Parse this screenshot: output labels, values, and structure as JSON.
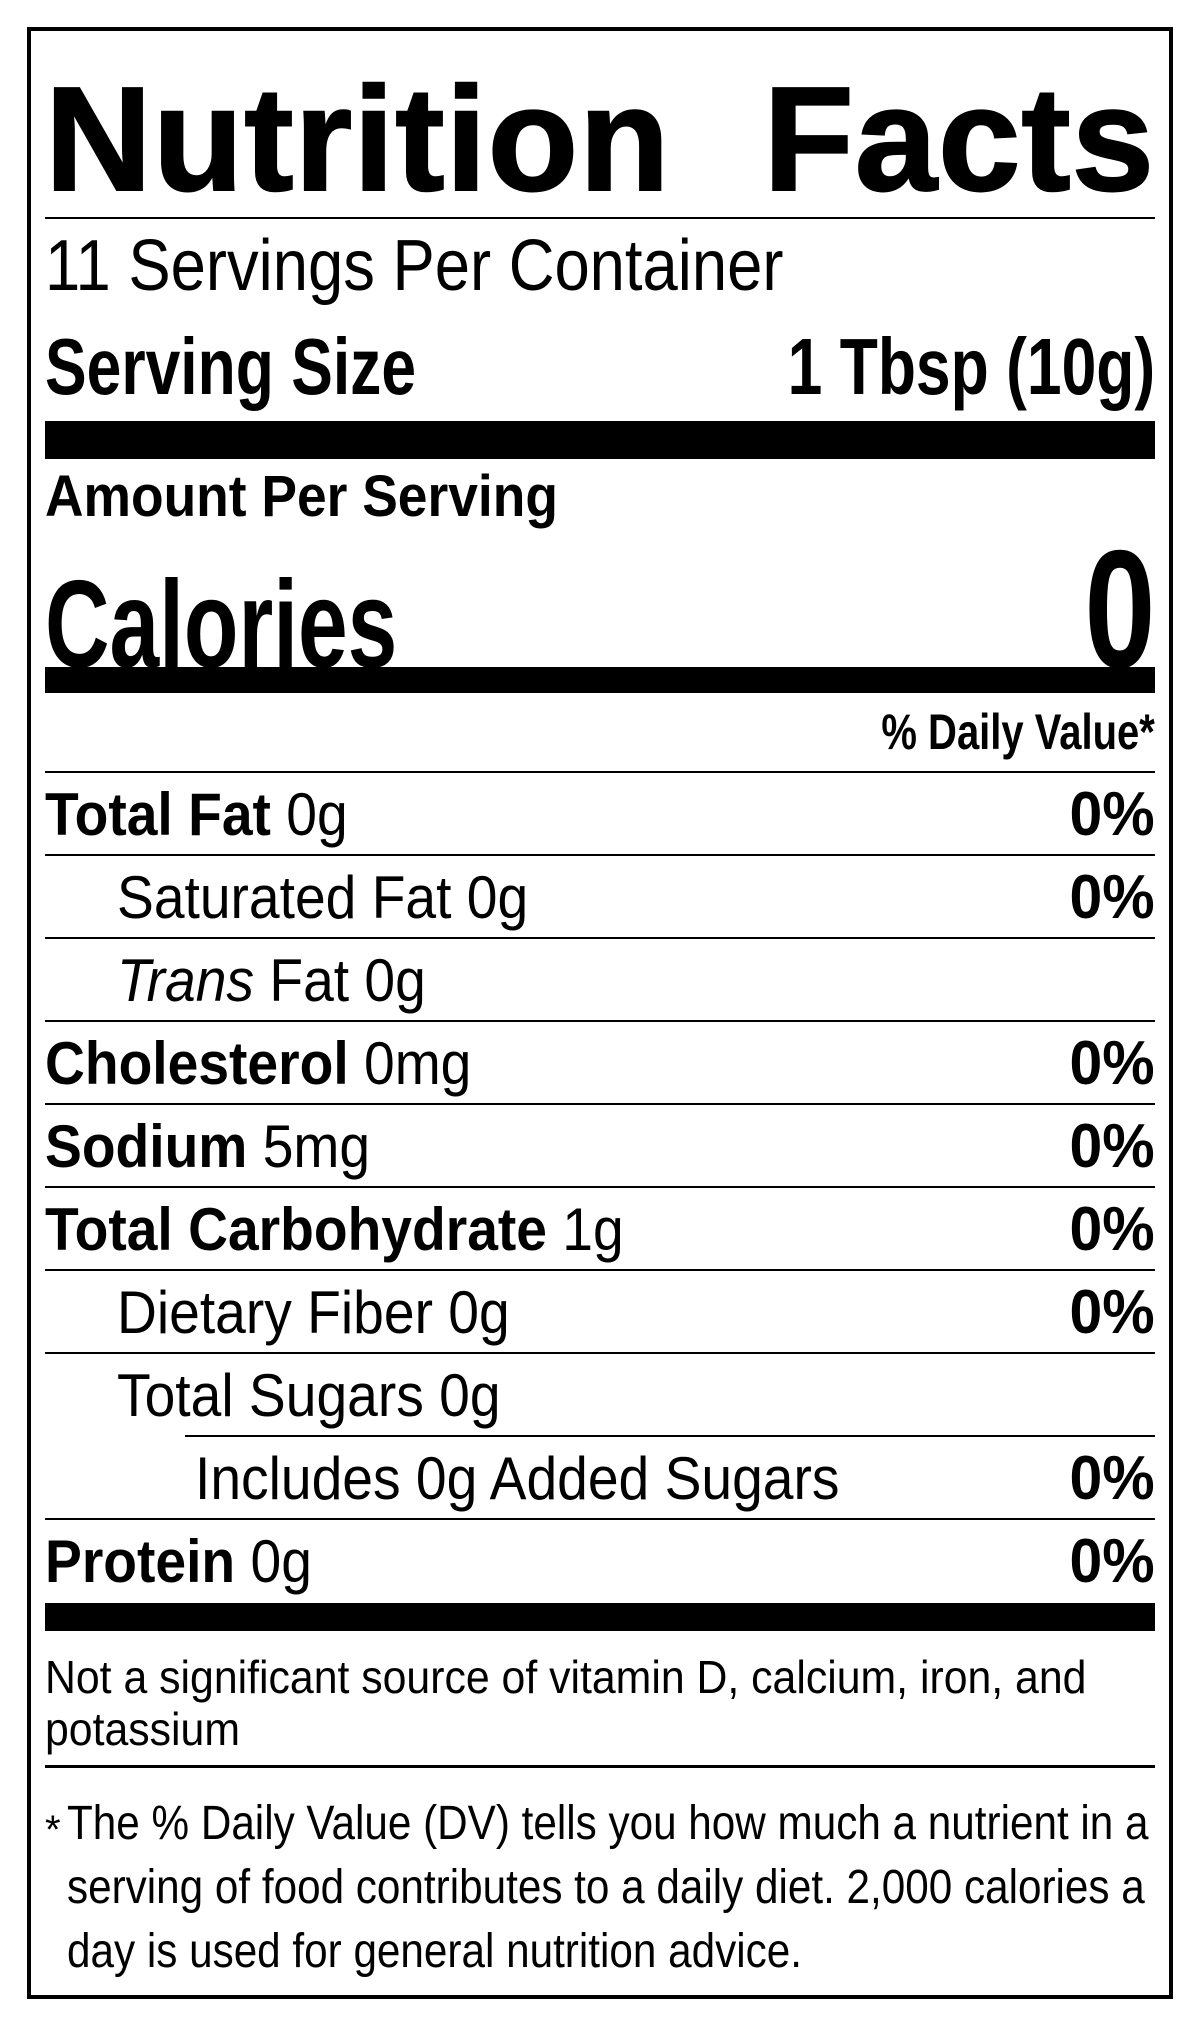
{
  "colors": {
    "ink": "#000000",
    "paper": "#ffffff"
  },
  "label": {
    "title_word1": "Nutrition",
    "title_word2": "Facts",
    "servings_per_container": "11 Servings Per Container",
    "serving_size_label": "Serving Size",
    "serving_size_value": "1 Tbsp (10g)",
    "amount_per_serving": "Amount Per Serving",
    "calories_label": "Calories",
    "calories_value": "0",
    "daily_value_header": "% Daily Value*",
    "nutrient_rows": [
      {
        "parts": [
          {
            "text": "Total Fat",
            "bold": true
          },
          {
            "text": " 0g"
          }
        ],
        "dv": "0%",
        "indent": 0,
        "rule_below": "full"
      },
      {
        "parts": [
          {
            "text": "Saturated Fat 0g"
          }
        ],
        "dv": "0%",
        "indent": 1,
        "rule_below": "full"
      },
      {
        "parts": [
          {
            "text": "Trans",
            "italic": true
          },
          {
            "text": " Fat 0g"
          }
        ],
        "dv": "",
        "indent": 1,
        "rule_below": "full"
      },
      {
        "parts": [
          {
            "text": "Cholesterol",
            "bold": true
          },
          {
            "text": " 0mg"
          }
        ],
        "dv": "0%",
        "indent": 0,
        "rule_below": "full"
      },
      {
        "parts": [
          {
            "text": "Sodium",
            "bold": true
          },
          {
            "text": " 5mg"
          }
        ],
        "dv": "0%",
        "indent": 0,
        "rule_below": "full"
      },
      {
        "parts": [
          {
            "text": "Total Carbohydrate",
            "bold": true
          },
          {
            "text": " 1g"
          }
        ],
        "dv": "0%",
        "indent": 0,
        "rule_below": "full"
      },
      {
        "parts": [
          {
            "text": "Dietary Fiber 0g"
          }
        ],
        "dv": "0%",
        "indent": 1,
        "rule_below": "full"
      },
      {
        "parts": [
          {
            "text": "Total Sugars 0g"
          }
        ],
        "dv": "",
        "indent": 1,
        "rule_below": "indent"
      },
      {
        "parts": [
          {
            "text": "Includes 0g Added Sugars"
          }
        ],
        "dv": "0%",
        "indent": 2,
        "rule_below": "full"
      },
      {
        "parts": [
          {
            "text": "Protein",
            "bold": true
          },
          {
            "text": " 0g"
          }
        ],
        "dv": "0%",
        "indent": 0,
        "rule_below": "none"
      }
    ],
    "not_significant_lines": [
      "Not a significant source of vitamin D, calcium, iron, and",
      "potassium"
    ],
    "footnote_marker": "*",
    "footnote_lines": [
      "The % Daily Value (DV) tells you how much a nutrient in a",
      "serving of food contributes to a daily diet. 2,000 calories a",
      "day is used for general nutrition advice."
    ]
  }
}
